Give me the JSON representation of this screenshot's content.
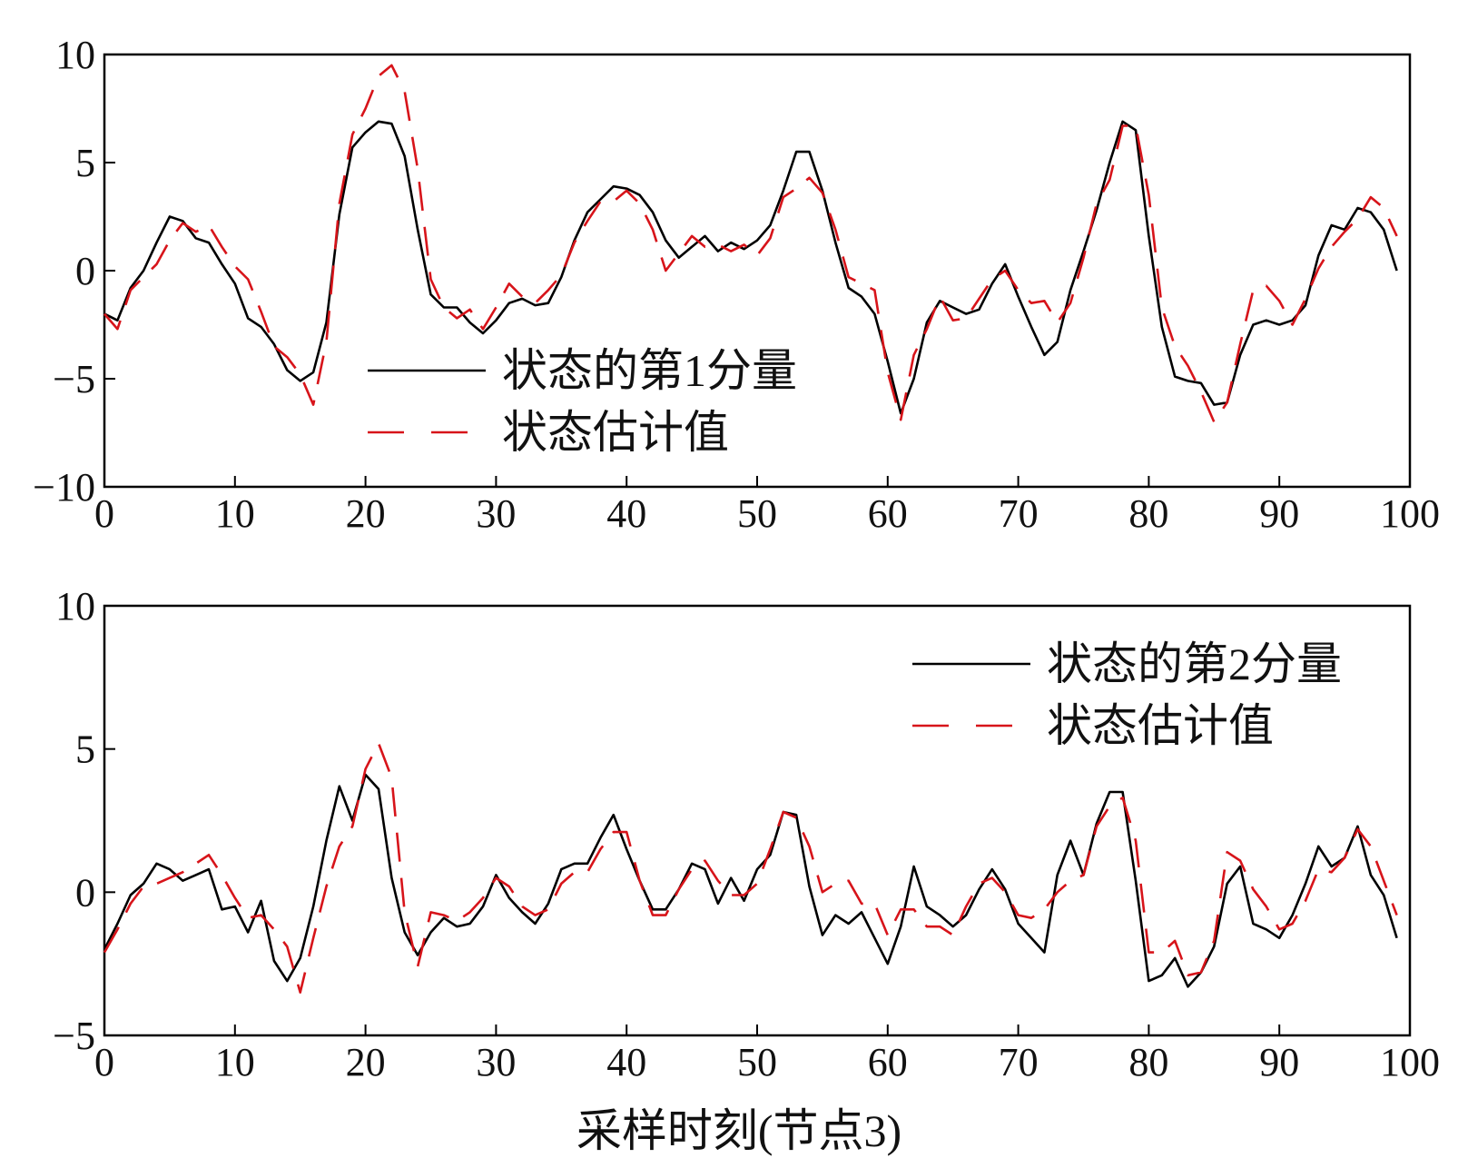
{
  "chart_data": [
    {
      "type": "line",
      "xlim": [
        0,
        100
      ],
      "ylim": [
        -10,
        10
      ],
      "xticks": [
        0,
        10,
        20,
        30,
        40,
        50,
        60,
        70,
        80,
        90,
        100
      ],
      "xtick_labels": [
        "0",
        "10",
        "20",
        "30",
        "40",
        "50",
        "60",
        "70",
        "80",
        "90",
        "100"
      ],
      "yticks": [
        -10,
        -5,
        0,
        5,
        10
      ],
      "ytick_labels": [
        "−10",
        "−5",
        "0",
        "5",
        "10"
      ],
      "legend_position": "center-left",
      "series": [
        {
          "name": "状态的第1分量",
          "color": "#000000",
          "style": "solid",
          "x": [
            0,
            1,
            2,
            3,
            4,
            5,
            6,
            7,
            8,
            9,
            10,
            11,
            12,
            13,
            14,
            15,
            16,
            17,
            18,
            19,
            20,
            21,
            22,
            23,
            24,
            25,
            26,
            27,
            28,
            29,
            30,
            31,
            32,
            33,
            34,
            35,
            36,
            37,
            38,
            39,
            40,
            41,
            42,
            43,
            44,
            45,
            46,
            47,
            48,
            49,
            50,
            51,
            52,
            53,
            54,
            55,
            56,
            57,
            58,
            59,
            60,
            61,
            62,
            63,
            64,
            65,
            66,
            67,
            68,
            69,
            70,
            71,
            72,
            73,
            74,
            75,
            76,
            77,
            78,
            79,
            80,
            81,
            82,
            83,
            84,
            85,
            86,
            87,
            88,
            89,
            90,
            91,
            92,
            93,
            94,
            95,
            96,
            97,
            98,
            99
          ],
          "values": [
            -2.0,
            -2.3,
            -0.8,
            0.0,
            1.3,
            2.5,
            2.3,
            1.5,
            1.3,
            0.3,
            -0.6,
            -2.2,
            -2.6,
            -3.4,
            -4.6,
            -5.1,
            -4.7,
            -2.4,
            2.6,
            5.7,
            6.4,
            6.9,
            6.8,
            5.3,
            1.9,
            -1.1,
            -1.7,
            -1.7,
            -2.4,
            -2.9,
            -2.3,
            -1.5,
            -1.3,
            -1.6,
            -1.5,
            -0.3,
            1.4,
            2.7,
            3.3,
            3.9,
            3.8,
            3.5,
            2.7,
            1.4,
            0.6,
            1.1,
            1.6,
            0.9,
            1.3,
            1.0,
            1.4,
            2.1,
            3.7,
            5.5,
            5.5,
            3.7,
            1.3,
            -0.8,
            -1.2,
            -2.0,
            -4.2,
            -6.6,
            -5.0,
            -2.4,
            -1.4,
            -1.7,
            -2.0,
            -1.8,
            -0.6,
            0.3,
            -1.2,
            -2.6,
            -3.9,
            -3.3,
            -0.9,
            0.9,
            2.8,
            5.0,
            6.9,
            6.5,
            1.6,
            -2.6,
            -4.9,
            -5.1,
            -5.2,
            -6.2,
            -6.1,
            -3.9,
            -2.5,
            -2.3,
            -2.5,
            -2.3,
            -1.6,
            0.7,
            2.1,
            1.9,
            2.9,
            2.7,
            1.9,
            0.0
          ]
        },
        {
          "name": "状态估计值",
          "color": "#d7141a",
          "style": "dashed",
          "x": [
            0,
            1,
            2,
            3,
            4,
            5,
            6,
            7,
            8,
            9,
            10,
            11,
            12,
            13,
            14,
            15,
            16,
            17,
            18,
            19,
            20,
            21,
            22,
            23,
            24,
            25,
            26,
            27,
            28,
            29,
            30,
            31,
            32,
            33,
            34,
            35,
            36,
            37,
            38,
            39,
            40,
            41,
            42,
            43,
            44,
            45,
            46,
            47,
            48,
            49,
            50,
            51,
            52,
            53,
            54,
            55,
            56,
            57,
            58,
            59,
            60,
            61,
            62,
            63,
            64,
            65,
            66,
            67,
            68,
            69,
            70,
            71,
            72,
            73,
            74,
            75,
            76,
            77,
            78,
            79,
            80,
            81,
            82,
            83,
            84,
            85,
            86,
            87,
            88,
            89,
            90,
            91,
            92,
            93,
            94,
            95,
            96,
            97,
            98,
            99
          ],
          "values": [
            -2.0,
            -2.7,
            -0.9,
            -0.3,
            0.3,
            1.4,
            2.2,
            1.8,
            2.1,
            1.1,
            0.2,
            -0.4,
            -1.9,
            -3.5,
            -4.0,
            -4.8,
            -6.2,
            -3.3,
            3.1,
            6.3,
            7.5,
            9.0,
            9.5,
            8.3,
            4.7,
            -0.4,
            -1.7,
            -2.2,
            -1.8,
            -2.7,
            -1.7,
            -0.6,
            -1.2,
            -1.5,
            -0.9,
            -0.2,
            1.3,
            2.3,
            3.2,
            3.2,
            3.7,
            3.1,
            1.9,
            0.0,
            0.8,
            1.6,
            1.1,
            1.2,
            0.9,
            1.2,
            0.7,
            1.5,
            3.4,
            3.8,
            4.3,
            3.6,
            1.9,
            -0.3,
            -0.6,
            -0.9,
            -4.7,
            -6.9,
            -3.9,
            -2.7,
            -1.2,
            -2.3,
            -2.2,
            -1.3,
            -0.4,
            0.0,
            -0.9,
            -1.5,
            -1.4,
            -2.4,
            -1.5,
            0.6,
            3.1,
            4.2,
            6.7,
            6.7,
            3.5,
            -1.7,
            -3.5,
            -4.4,
            -5.6,
            -7.0,
            -6.1,
            -3.4,
            -0.9,
            -0.7,
            -1.4,
            -2.5,
            -1.3,
            0.1,
            1.1,
            1.8,
            2.4,
            3.4,
            2.9,
            1.6
          ]
        }
      ]
    },
    {
      "type": "line",
      "xlim": [
        0,
        100
      ],
      "ylim": [
        -5,
        10
      ],
      "xticks": [
        0,
        10,
        20,
        30,
        40,
        50,
        60,
        70,
        80,
        90,
        100
      ],
      "xtick_labels": [
        "0",
        "10",
        "20",
        "30",
        "40",
        "50",
        "60",
        "70",
        "80",
        "90",
        "100"
      ],
      "yticks": [
        -5,
        0,
        5,
        10
      ],
      "ytick_labels": [
        "−5",
        "0",
        "5",
        "10"
      ],
      "xlabel": "采样时刻(节点3)",
      "legend_position": "top-right",
      "series": [
        {
          "name": "状态的第2分量",
          "color": "#000000",
          "style": "solid",
          "x": [
            0,
            1,
            2,
            3,
            4,
            5,
            6,
            7,
            8,
            9,
            10,
            11,
            12,
            13,
            14,
            15,
            16,
            17,
            18,
            19,
            20,
            21,
            22,
            23,
            24,
            25,
            26,
            27,
            28,
            29,
            30,
            31,
            32,
            33,
            34,
            35,
            36,
            37,
            38,
            39,
            40,
            41,
            42,
            43,
            44,
            45,
            46,
            47,
            48,
            49,
            50,
            51,
            52,
            53,
            54,
            55,
            56,
            57,
            58,
            59,
            60,
            61,
            62,
            63,
            64,
            65,
            66,
            67,
            68,
            69,
            70,
            71,
            72,
            73,
            74,
            75,
            76,
            77,
            78,
            79,
            80,
            81,
            82,
            83,
            84,
            85,
            86,
            87,
            88,
            89,
            90,
            91,
            92,
            93,
            94,
            95,
            96,
            97,
            98,
            99
          ],
          "values": [
            -2.0,
            -1.1,
            -0.1,
            0.3,
            1.0,
            0.8,
            0.4,
            0.6,
            0.8,
            -0.6,
            -0.5,
            -1.4,
            -0.3,
            -2.4,
            -3.1,
            -2.3,
            -0.5,
            1.8,
            3.7,
            2.5,
            4.1,
            3.6,
            0.5,
            -1.4,
            -2.2,
            -1.4,
            -0.9,
            -1.2,
            -1.1,
            -0.5,
            0.6,
            -0.2,
            -0.7,
            -1.1,
            -0.4,
            0.8,
            1.0,
            1.0,
            1.9,
            2.7,
            1.5,
            0.4,
            -0.6,
            -0.6,
            0.1,
            1.0,
            0.8,
            -0.4,
            0.5,
            -0.3,
            0.8,
            1.3,
            2.8,
            2.7,
            0.2,
            -1.5,
            -0.8,
            -1.1,
            -0.7,
            -1.6,
            -2.5,
            -1.2,
            0.9,
            -0.5,
            -0.8,
            -1.2,
            -0.8,
            0.1,
            0.8,
            0.1,
            -1.1,
            -1.6,
            -2.1,
            0.6,
            1.8,
            0.6,
            2.4,
            3.5,
            3.5,
            0.4,
            -3.1,
            -2.9,
            -2.3,
            -3.3,
            -2.8,
            -1.9,
            0.3,
            0.9,
            -1.1,
            -1.3,
            -1.6,
            -0.8,
            0.3,
            1.6,
            0.9,
            1.2,
            2.3,
            0.6,
            -0.1,
            -1.6
          ]
        },
        {
          "name": "状态估计值",
          "color": "#d7141a",
          "style": "dashed",
          "x": [
            0,
            1,
            2,
            3,
            4,
            5,
            6,
            7,
            8,
            9,
            10,
            11,
            12,
            13,
            14,
            15,
            16,
            17,
            18,
            19,
            20,
            21,
            22,
            23,
            24,
            25,
            26,
            27,
            28,
            29,
            30,
            31,
            32,
            33,
            34,
            35,
            36,
            37,
            38,
            39,
            40,
            41,
            42,
            43,
            44,
            45,
            46,
            47,
            48,
            49,
            50,
            51,
            52,
            53,
            54,
            55,
            56,
            57,
            58,
            59,
            60,
            61,
            62,
            63,
            64,
            65,
            66,
            67,
            68,
            69,
            70,
            71,
            72,
            73,
            74,
            75,
            76,
            77,
            78,
            79,
            80,
            81,
            82,
            83,
            84,
            85,
            86,
            87,
            88,
            89,
            90,
            91,
            92,
            93,
            94,
            95,
            96,
            97,
            98,
            99
          ],
          "values": [
            -2.1,
            -1.3,
            -0.4,
            0.2,
            0.3,
            0.5,
            0.7,
            1.0,
            1.3,
            0.6,
            -0.2,
            -0.9,
            -0.8,
            -1.3,
            -1.9,
            -3.5,
            -1.6,
            0.2,
            1.6,
            2.3,
            4.3,
            5.2,
            4.0,
            -0.7,
            -2.6,
            -0.7,
            -0.8,
            -1.0,
            -0.7,
            -0.2,
            0.5,
            0.2,
            -0.5,
            -0.8,
            -0.6,
            0.3,
            0.7,
            0.7,
            1.5,
            2.1,
            2.1,
            0.4,
            -0.8,
            -0.8,
            0.1,
            0.8,
            1.1,
            0.4,
            -0.1,
            -0.1,
            0.3,
            1.5,
            2.8,
            2.6,
            1.6,
            0.0,
            0.3,
            0.4,
            -0.4,
            -0.4,
            -1.5,
            -0.6,
            -0.6,
            -1.2,
            -1.2,
            -1.5,
            -0.5,
            0.3,
            0.5,
            0.0,
            -0.8,
            -0.9,
            -0.6,
            0.0,
            0.4,
            0.6,
            2.3,
            3.0,
            3.3,
            1.8,
            -2.1,
            -2.1,
            -1.7,
            -2.9,
            -2.8,
            -1.7,
            1.4,
            1.1,
            0.1,
            -0.5,
            -1.3,
            -1.1,
            -0.3,
            0.8,
            0.7,
            1.2,
            2.2,
            1.6,
            0.4,
            -0.8
          ]
        }
      ]
    }
  ]
}
